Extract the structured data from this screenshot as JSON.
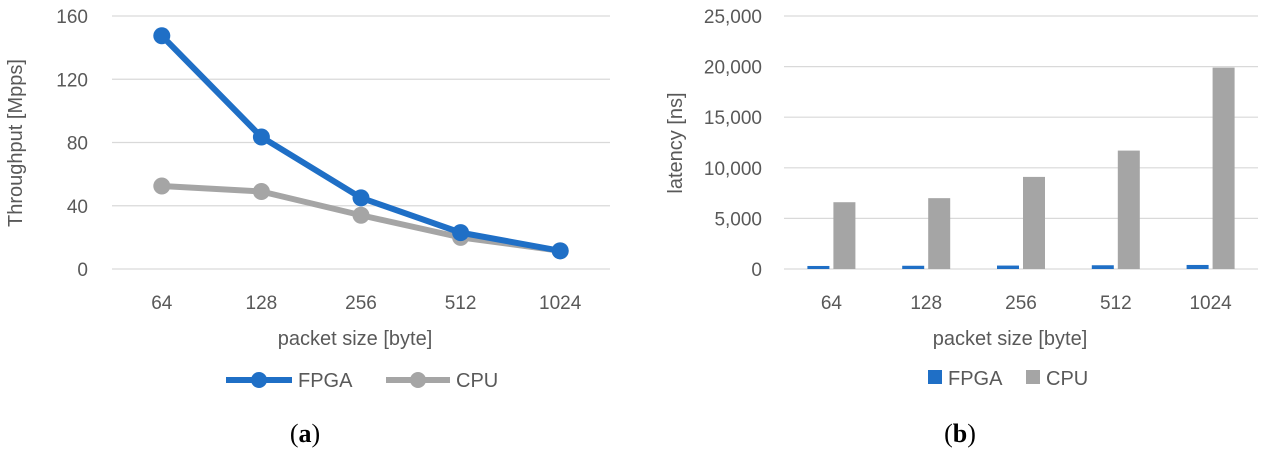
{
  "chart_data": [
    {
      "type": "line",
      "panel_label": "a",
      "categories": [
        "64",
        "128",
        "256",
        "512",
        "1024"
      ],
      "series": [
        {
          "name": "FPGA",
          "values": [
            147.5,
            83.5,
            45,
            23,
            11.5
          ],
          "color": "#1f6fc6"
        },
        {
          "name": "CPU",
          "values": [
            52.5,
            49,
            34,
            20,
            11.5
          ],
          "color": "#a5a5a5"
        }
      ],
      "title": "",
      "xlabel": "packet size [byte]",
      "ylabel": "Throughput [Mpps]",
      "ylim": [
        0,
        160
      ],
      "yticks": [
        "0",
        "40",
        "80",
        "120",
        "160"
      ],
      "ytick_values": [
        0,
        40,
        80,
        120,
        160
      ],
      "grid": true,
      "legend": "bottom"
    },
    {
      "type": "bar",
      "panel_label": "b",
      "categories": [
        "64",
        "128",
        "256",
        "512",
        "1024"
      ],
      "series": [
        {
          "name": "FPGA",
          "values": [
            300,
            320,
            340,
            370,
            400
          ],
          "color": "#1f6fc6"
        },
        {
          "name": "CPU",
          "values": [
            6600,
            7000,
            9100,
            11700,
            19900
          ],
          "color": "#a5a5a5"
        }
      ],
      "title": "",
      "xlabel": "packet size [byte]",
      "ylabel": "latency [ns]",
      "ylim": [
        0,
        25000
      ],
      "yticks": [
        "0",
        "5,000",
        "10,000",
        "15,000",
        "20,000",
        "25,000"
      ],
      "ytick_values": [
        0,
        5000,
        10000,
        15000,
        20000,
        25000
      ],
      "grid": true,
      "legend": "bottom"
    }
  ]
}
